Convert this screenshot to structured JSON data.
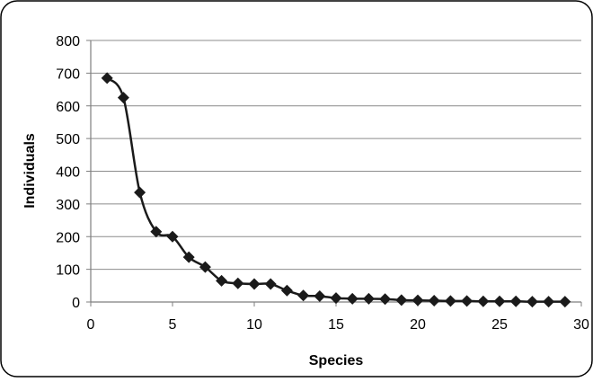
{
  "chart_data": {
    "type": "scatter",
    "title": "",
    "xlabel": "Species",
    "ylabel": "Individuals",
    "xlim": [
      0,
      30
    ],
    "ylim": [
      0,
      800
    ],
    "xticks": [
      0,
      5,
      10,
      15,
      20,
      25,
      30
    ],
    "yticks": [
      0,
      100,
      200,
      300,
      400,
      500,
      600,
      700,
      800
    ],
    "grid": "horizontal",
    "legend": "none",
    "marker": "diamond",
    "line": "smooth",
    "series": [
      {
        "color": "#1a1a1a",
        "points": [
          {
            "x": 1,
            "y": 685
          },
          {
            "x": 2,
            "y": 625
          },
          {
            "x": 3,
            "y": 335
          },
          {
            "x": 4,
            "y": 215
          },
          {
            "x": 5,
            "y": 200
          },
          {
            "x": 6,
            "y": 137
          },
          {
            "x": 7,
            "y": 107
          },
          {
            "x": 8,
            "y": 65
          },
          {
            "x": 9,
            "y": 57
          },
          {
            "x": 10,
            "y": 55
          },
          {
            "x": 11,
            "y": 55
          },
          {
            "x": 12,
            "y": 35
          },
          {
            "x": 13,
            "y": 20
          },
          {
            "x": 14,
            "y": 18
          },
          {
            "x": 15,
            "y": 12
          },
          {
            "x": 16,
            "y": 10
          },
          {
            "x": 17,
            "y": 10
          },
          {
            "x": 18,
            "y": 9
          },
          {
            "x": 19,
            "y": 6
          },
          {
            "x": 20,
            "y": 5
          },
          {
            "x": 21,
            "y": 4
          },
          {
            "x": 22,
            "y": 3
          },
          {
            "x": 23,
            "y": 3
          },
          {
            "x": 24,
            "y": 2
          },
          {
            "x": 25,
            "y": 2
          },
          {
            "x": 26,
            "y": 2
          },
          {
            "x": 27,
            "y": 1
          },
          {
            "x": 28,
            "y": 1
          },
          {
            "x": 29,
            "y": 1
          }
        ]
      }
    ]
  }
}
